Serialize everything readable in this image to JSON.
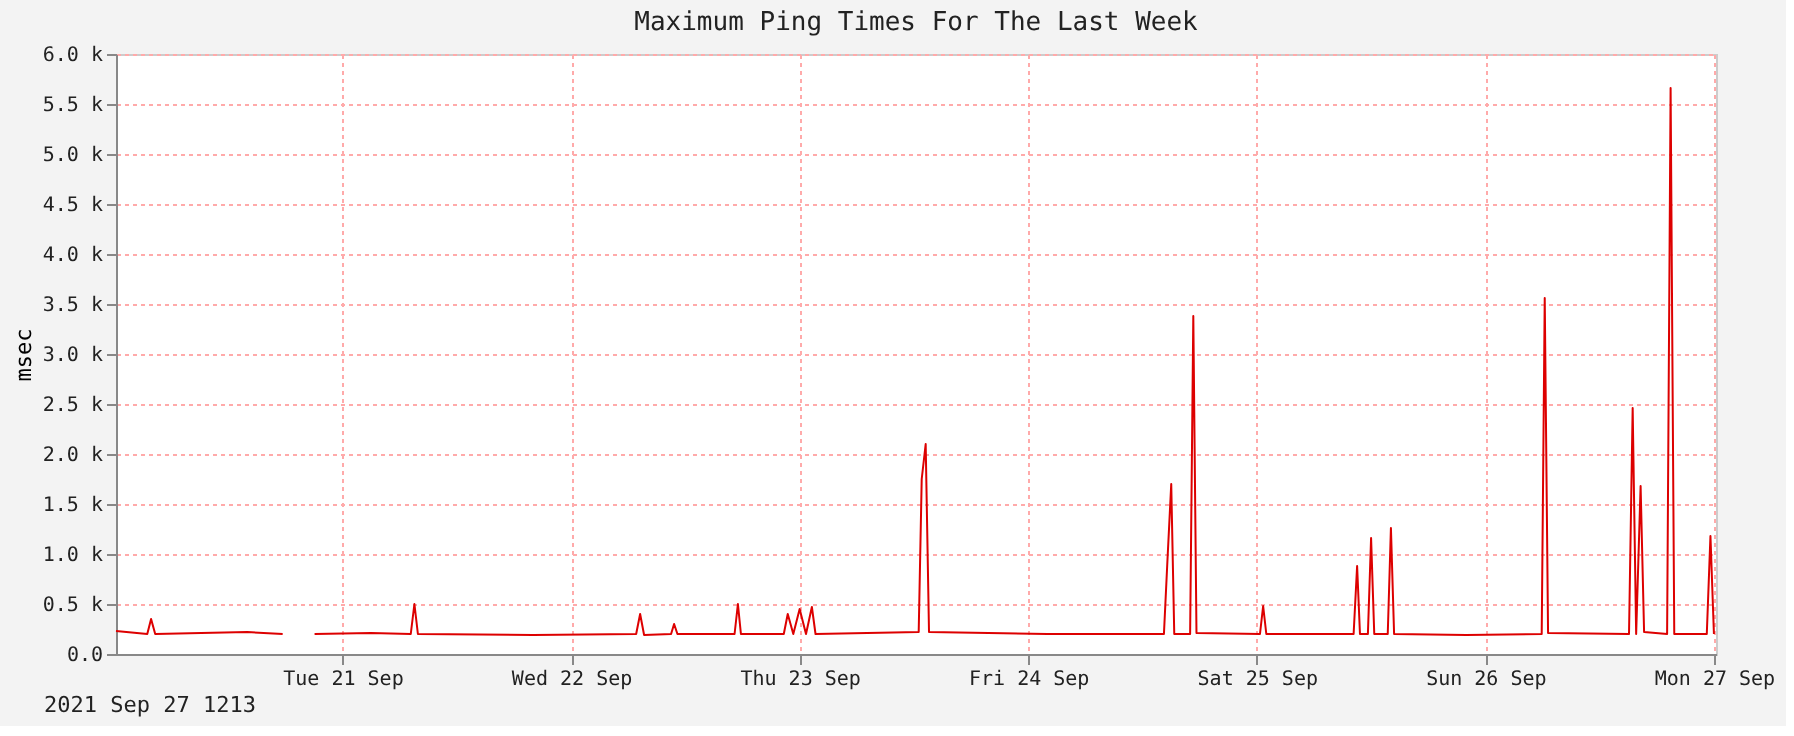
{
  "chart_data": {
    "type": "line",
    "title": "Maximum Ping Times For The Last Week",
    "ylabel": "msec",
    "annotations": [
      "2021 Sep 27 1213"
    ],
    "xlim": [
      "2021-09-20T12:13",
      "2021-09-27T12:13"
    ],
    "xticks": [
      {
        "value": "2021-09-21T12:00",
        "label": "Tue 21 Sep"
      },
      {
        "value": "2021-09-22T12:00",
        "label": "Wed 22 Sep"
      },
      {
        "value": "2021-09-23T12:00",
        "label": "Thu 23 Sep"
      },
      {
        "value": "2021-09-24T12:00",
        "label": "Fri 24 Sep"
      },
      {
        "value": "2021-09-25T12:00",
        "label": "Sat 25 Sep"
      },
      {
        "value": "2021-09-26T12:00",
        "label": "Sun 26 Sep"
      },
      {
        "value": "2021-09-27T12:00",
        "label": "Mon 27 Sep"
      }
    ],
    "ylim": [
      0,
      6000
    ],
    "yticks": [
      {
        "value": 0,
        "label": "0.0"
      },
      {
        "value": 500,
        "label": "0.5 k"
      },
      {
        "value": 1000,
        "label": "1.0 k"
      },
      {
        "value": 1500,
        "label": "1.5 k"
      },
      {
        "value": 2000,
        "label": "2.0 k"
      },
      {
        "value": 2500,
        "label": "2.5 k"
      },
      {
        "value": 3000,
        "label": "3.0 k"
      },
      {
        "value": 3500,
        "label": "3.5 k"
      },
      {
        "value": 4000,
        "label": "4.0 k"
      },
      {
        "value": 4500,
        "label": "4.5 k"
      },
      {
        "value": 5000,
        "label": "5.0 k"
      },
      {
        "value": 5500,
        "label": "5.5 k"
      },
      {
        "value": 6000,
        "label": "6.0 k"
      }
    ],
    "grid": true,
    "line_style": "solid",
    "x": [
      "2021-09-20T12:13",
      "2021-09-20T15:30",
      "2021-09-20T15:54",
      "2021-09-20T16:20",
      "2021-09-21T02:00",
      "2021-09-21T05:43",
      "2021-09-21T07:00",
      "2021-09-21T09:04",
      "2021-09-21T15:00",
      "2021-09-21T19:10",
      "2021-09-21T19:33",
      "2021-09-21T19:55",
      "2021-09-22T08:00",
      "2021-09-22T18:50",
      "2021-09-22T19:15",
      "2021-09-22T19:40",
      "2021-09-22T22:30",
      "2021-09-22T22:49",
      "2021-09-22T23:10",
      "2021-09-23T05:10",
      "2021-09-23T05:31",
      "2021-09-23T05:50",
      "2021-09-23T10:20",
      "2021-09-23T10:45",
      "2021-09-23T11:20",
      "2021-09-23T12:00",
      "2021-09-23T12:40",
      "2021-09-23T13:17",
      "2021-09-23T13:40",
      "2021-09-24T00:30",
      "2021-09-24T00:49",
      "2021-09-24T01:14",
      "2021-09-24T01:35",
      "2021-09-24T14:00",
      "2021-09-25T02:15",
      "2021-09-25T02:36",
      "2021-09-25T03:01",
      "2021-09-25T03:20",
      "2021-09-25T05:00",
      "2021-09-25T05:20",
      "2021-09-25T05:40",
      "2021-09-25T12:20",
      "2021-09-25T12:40",
      "2021-09-25T13:00",
      "2021-09-25T22:10",
      "2021-09-25T22:32",
      "2021-09-25T22:50",
      "2021-09-25T23:40",
      "2021-09-26T00:00",
      "2021-09-26T00:20",
      "2021-09-26T01:45",
      "2021-09-26T02:05",
      "2021-09-26T02:25",
      "2021-09-26T10:00",
      "2021-09-26T17:55",
      "2021-09-26T18:14",
      "2021-09-26T18:35",
      "2021-09-27T03:05",
      "2021-09-27T03:28",
      "2021-09-27T03:50",
      "2021-09-27T04:18",
      "2021-09-27T04:40",
      "2021-09-27T07:05",
      "2021-09-27T07:27",
      "2021-09-27T07:50",
      "2021-09-27T11:15",
      "2021-09-27T11:38",
      "2021-09-27T12:00"
    ],
    "series": [
      {
        "color": "#dd0000",
        "values": [
          230,
          200,
          350,
          200,
          220,
          200,
          null,
          200,
          210,
          200,
          500,
          200,
          190,
          200,
          400,
          190,
          200,
          300,
          200,
          200,
          500,
          200,
          200,
          400,
          200,
          450,
          200,
          470,
          200,
          220,
          1750,
          2100,
          220,
          200,
          200,
          900,
          1700,
          200,
          200,
          3380,
          210,
          200,
          480,
          200,
          200,
          880,
          200,
          200,
          1160,
          200,
          200,
          1260,
          200,
          190,
          200,
          3560,
          210,
          200,
          2460,
          200,
          1680,
          220,
          200,
          5660,
          200,
          200,
          1180,
          200
        ]
      }
    ]
  }
}
